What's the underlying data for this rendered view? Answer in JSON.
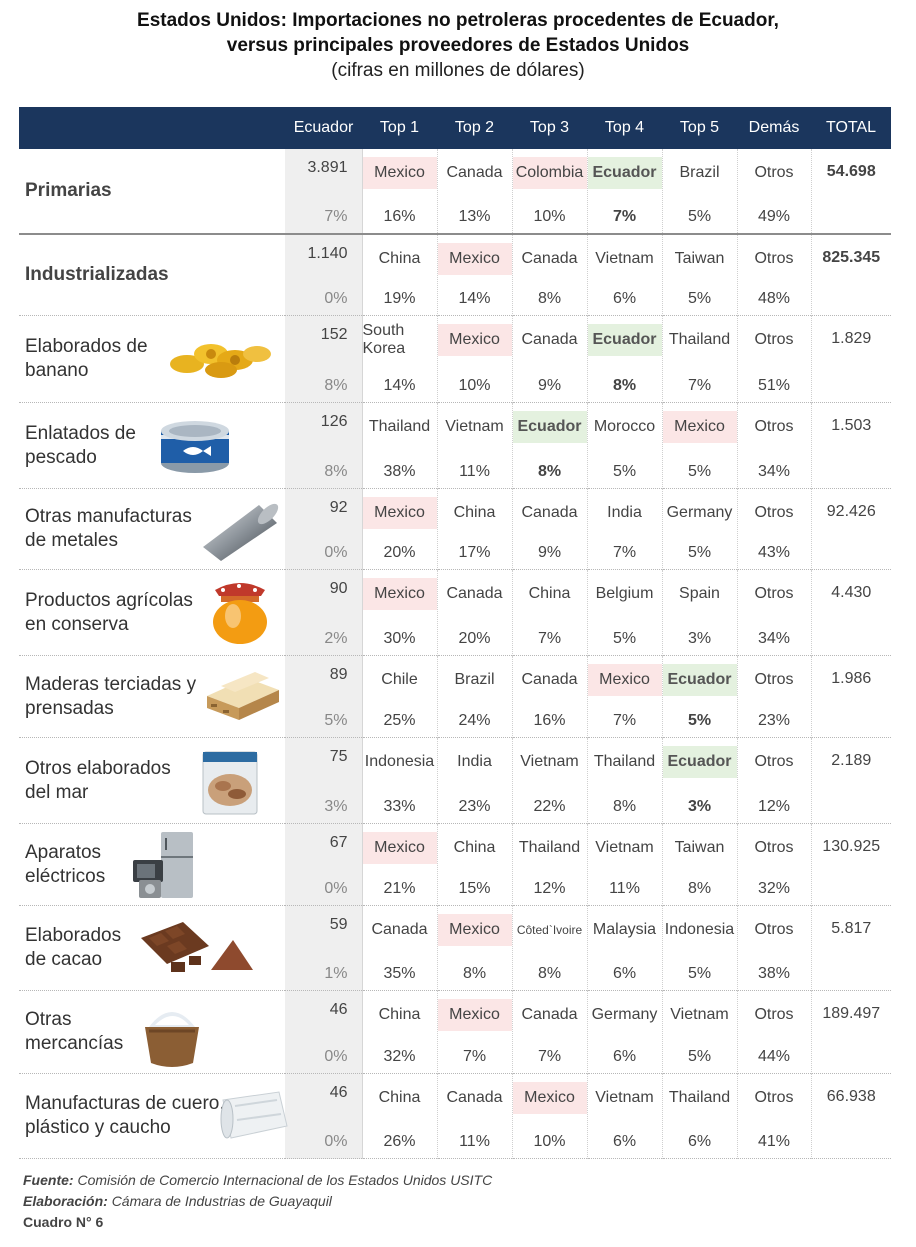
{
  "title": {
    "line1": "Estados Unidos: Importaciones no petroleras procedentes de Ecuador,",
    "line2": "versus principales proveedores de Estados Unidos",
    "line3": "(cifras en millones de dólares)"
  },
  "headers": [
    "Ecuador",
    "Top 1",
    "Top 2",
    "Top 3",
    "Top 4",
    "Top 5",
    "Demás",
    "TOTAL"
  ],
  "rows": [
    {
      "label": "Primarias",
      "ec_value": "3.891",
      "ec_pct": "7%",
      "tops": [
        {
          "name": "Mexico",
          "pct": "16%",
          "hl": "mex"
        },
        {
          "name": "Canada",
          "pct": "13%"
        },
        {
          "name": "Colombia",
          "pct": "10%",
          "hl": "mex"
        },
        {
          "name": "Ecuador",
          "pct": "7%",
          "hl": "ec"
        },
        {
          "name": "Brazil",
          "pct": "5%"
        }
      ],
      "others": {
        "name": "Otros",
        "pct": "49%"
      },
      "total": "54.698"
    },
    {
      "label": "Industrializadas",
      "ec_value": "1.140",
      "ec_pct": "0%",
      "tops": [
        {
          "name": "China",
          "pct": "19%"
        },
        {
          "name": "Mexico",
          "pct": "14%",
          "hl": "mex"
        },
        {
          "name": "Canada",
          "pct": "8%"
        },
        {
          "name": "Vietnam",
          "pct": "6%"
        },
        {
          "name": "Taiwan",
          "pct": "5%"
        }
      ],
      "others": {
        "name": "Otros",
        "pct": "48%"
      },
      "total": "825.345"
    },
    {
      "label": "Elaborados de banano",
      "ec_value": "152",
      "ec_pct": "8%",
      "tops": [
        {
          "name": "South Korea",
          "pct": "14%"
        },
        {
          "name": "Mexico",
          "pct": "10%",
          "hl": "mex"
        },
        {
          "name": "Canada",
          "pct": "9%"
        },
        {
          "name": "Ecuador",
          "pct": "8%",
          "hl": "ec"
        },
        {
          "name": "Thailand",
          "pct": "7%"
        }
      ],
      "others": {
        "name": "Otros",
        "pct": "51%"
      },
      "total": "1.829",
      "icon": "banana-chips-icon"
    },
    {
      "label": "Enlatados de pescado",
      "ec_value": "126",
      "ec_pct": "8%",
      "tops": [
        {
          "name": "Thailand",
          "pct": "38%"
        },
        {
          "name": "Vietnam",
          "pct": "11%"
        },
        {
          "name": "Ecuador",
          "pct": "8%",
          "hl": "ec"
        },
        {
          "name": "Morocco",
          "pct": "5%"
        },
        {
          "name": "Mexico",
          "pct": "5%",
          "hl": "mex"
        }
      ],
      "others": {
        "name": "Otros",
        "pct": "34%"
      },
      "total": "1.503",
      "icon": "tuna-can-icon"
    },
    {
      "label": "Otras manufacturas de metales",
      "ec_value": "92",
      "ec_pct": "0%",
      "tops": [
        {
          "name": "Mexico",
          "pct": "20%",
          "hl": "mex"
        },
        {
          "name": "China",
          "pct": "17%"
        },
        {
          "name": "Canada",
          "pct": "9%"
        },
        {
          "name": "India",
          "pct": "7%"
        },
        {
          "name": "Germany",
          "pct": "5%"
        }
      ],
      "others": {
        "name": "Otros",
        "pct": "43%"
      },
      "total": "92.426",
      "icon": "metal-pipe-icon"
    },
    {
      "label": "Productos agrícolas en conserva",
      "ec_value": "90",
      "ec_pct": "2%",
      "tops": [
        {
          "name": "Mexico",
          "pct": "30%",
          "hl": "mex"
        },
        {
          "name": "Canada",
          "pct": "20%"
        },
        {
          "name": "China",
          "pct": "7%"
        },
        {
          "name": "Belgium",
          "pct": "5%"
        },
        {
          "name": "Spain",
          "pct": "3%"
        }
      ],
      "others": {
        "name": "Otros",
        "pct": "34%"
      },
      "total": "4.430",
      "icon": "jar-icon"
    },
    {
      "label": "Maderas terciadas y prensadas",
      "ec_value": "89",
      "ec_pct": "5%",
      "tops": [
        {
          "name": "Chile",
          "pct": "25%"
        },
        {
          "name": "Brazil",
          "pct": "24%"
        },
        {
          "name": "Canada",
          "pct": "16%"
        },
        {
          "name": "Mexico",
          "pct": "7%",
          "hl": "mex"
        },
        {
          "name": "Ecuador",
          "pct": "5%",
          "hl": "ec"
        }
      ],
      "others": {
        "name": "Otros",
        "pct": "23%"
      },
      "total": "1.986",
      "icon": "plywood-icon"
    },
    {
      "label": "Otros elaborados del mar",
      "ec_value": "75",
      "ec_pct": "3%",
      "tops": [
        {
          "name": "Indonesia",
          "pct": "33%"
        },
        {
          "name": "India",
          "pct": "23%"
        },
        {
          "name": "Vietnam",
          "pct": "22%"
        },
        {
          "name": "Thailand",
          "pct": "8%"
        },
        {
          "name": "Ecuador",
          "pct": "3%",
          "hl": "ec"
        }
      ],
      "others": {
        "name": "Otros",
        "pct": "12%"
      },
      "total": "2.189",
      "icon": "seafood-bag-icon"
    },
    {
      "label": "Aparatos eléctricos",
      "ec_value": "67",
      "ec_pct": "0%",
      "tops": [
        {
          "name": "Mexico",
          "pct": "21%",
          "hl": "mex"
        },
        {
          "name": "China",
          "pct": "15%"
        },
        {
          "name": "Thailand",
          "pct": "12%"
        },
        {
          "name": "Vietnam",
          "pct": "11%"
        },
        {
          "name": "Taiwan",
          "pct": "8%"
        }
      ],
      "others": {
        "name": "Otros",
        "pct": "32%"
      },
      "total": "130.925",
      "icon": "appliances-icon"
    },
    {
      "label": "Elaborados de cacao",
      "ec_value": "59",
      "ec_pct": "1%",
      "tops": [
        {
          "name": "Canada",
          "pct": "35%"
        },
        {
          "name": "Mexico",
          "pct": "8%",
          "hl": "mex"
        },
        {
          "name": "Côted`Ivoire",
          "pct": "8%",
          "small": true
        },
        {
          "name": "Malaysia",
          "pct": "6%"
        },
        {
          "name": "Indonesia",
          "pct": "5%"
        }
      ],
      "others": {
        "name": "Otros",
        "pct": "38%"
      },
      "total": "5.817",
      "icon": "chocolate-icon"
    },
    {
      "label": "Otras mercancías",
      "ec_value": "46",
      "ec_pct": "0%",
      "tops": [
        {
          "name": "China",
          "pct": "32%"
        },
        {
          "name": "Mexico",
          "pct": "7%",
          "hl": "mex"
        },
        {
          "name": "Canada",
          "pct": "7%"
        },
        {
          "name": "Germany",
          "pct": "6%"
        },
        {
          "name": "Vietnam",
          "pct": "5%"
        }
      ],
      "others": {
        "name": "Otros",
        "pct": "44%"
      },
      "total": "189.497",
      "icon": "sack-icon"
    },
    {
      "label": "Manufacturas de cuero, plástico y caucho",
      "ec_value": "46",
      "ec_pct": "0%",
      "tops": [
        {
          "name": "China",
          "pct": "26%"
        },
        {
          "name": "Canada",
          "pct": "11%"
        },
        {
          "name": "Mexico",
          "pct": "10%",
          "hl": "mex"
        },
        {
          "name": "Vietnam",
          "pct": "6%"
        },
        {
          "name": "Thailand",
          "pct": "6%"
        }
      ],
      "others": {
        "name": "Otros",
        "pct": "41%"
      },
      "total": "66.938",
      "icon": "plastic-roll-icon"
    }
  ],
  "footer": {
    "fuente_label": "Fuente:",
    "fuente_text": "Comisión de Comercio Internacional de los Estados Unidos USITC",
    "elab_label": "Elaboración:",
    "elab_text": "Cámara de Industrias de Guayaquil",
    "cuadro": "Cuadro N° 6"
  }
}
